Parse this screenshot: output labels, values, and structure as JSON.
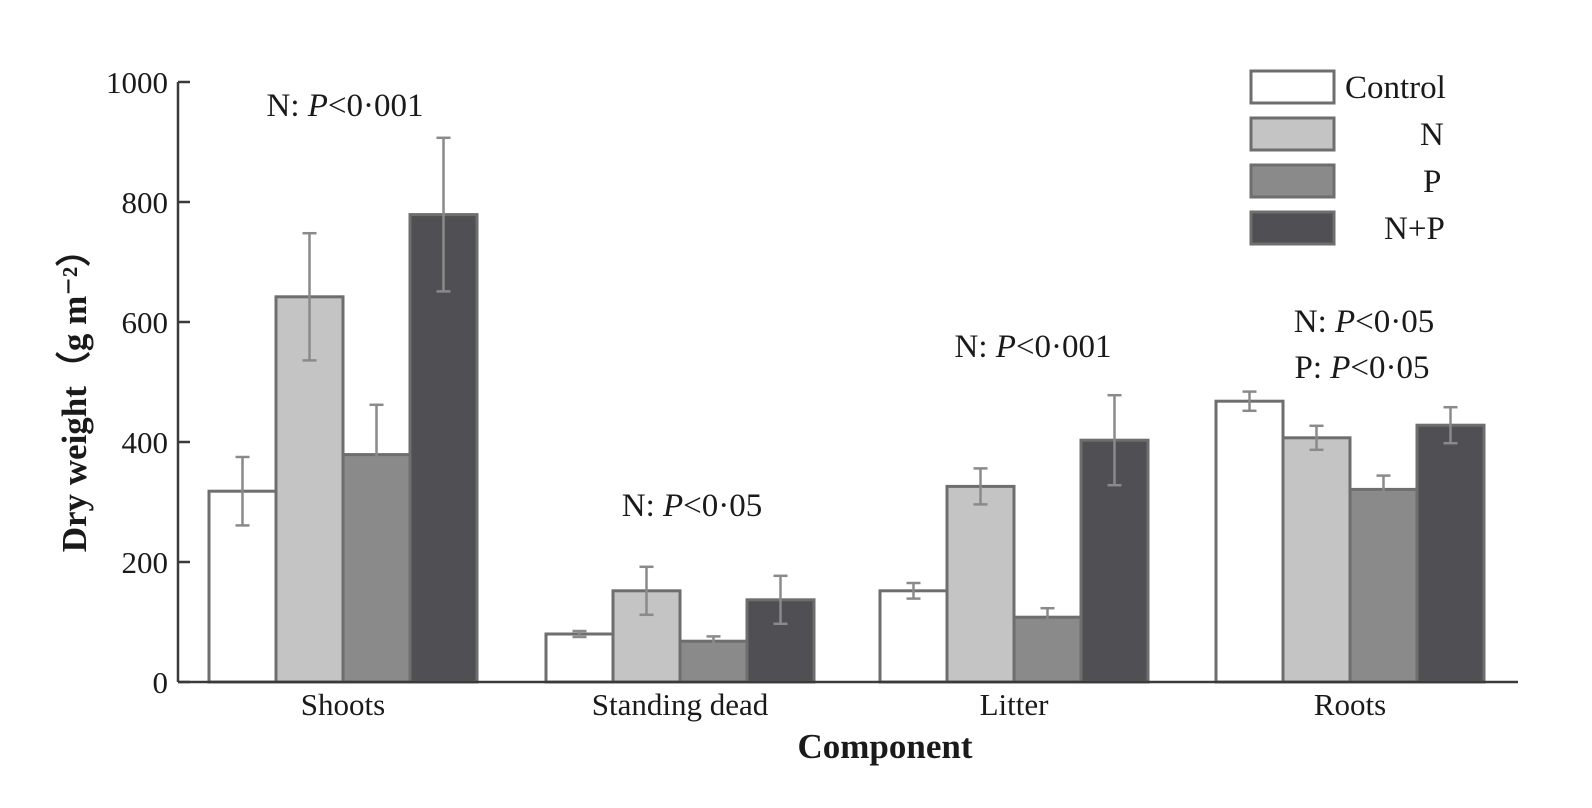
{
  "chart_data": {
    "type": "bar",
    "xlabel": "Component",
    "ylabel": "Dry weight（g m⁻²）",
    "ylim": [
      0,
      1000
    ],
    "yticks": [
      0,
      200,
      400,
      600,
      800,
      1000
    ],
    "categories": [
      "Shoots",
      "Standing dead",
      "Litter",
      "Roots"
    ],
    "series": [
      {
        "name": "Control",
        "color": "#ffffff",
        "values": [
          318,
          80,
          152,
          468
        ],
        "errors": [
          57,
          5,
          13,
          16
        ]
      },
      {
        "name": "N",
        "color": "#c4c4c4",
        "values": [
          642,
          152,
          326,
          407
        ],
        "errors": [
          106,
          40,
          30,
          20
        ]
      },
      {
        "name": "P",
        "color": "#8a8a8a",
        "values": [
          379,
          68,
          108,
          321
        ],
        "errors": [
          83,
          8,
          15,
          23
        ]
      },
      {
        "name": "N+P",
        "color": "#4f4f54",
        "values": [
          779,
          137,
          403,
          428
        ],
        "errors": [
          128,
          40,
          75,
          30
        ]
      }
    ],
    "annotations": [
      {
        "category": "Shoots",
        "lines": [
          {
            "prefix": "N: ",
            "p": "P",
            "rest": "<0·001"
          }
        ]
      },
      {
        "category": "Standing dead",
        "lines": [
          {
            "prefix": "N: ",
            "p": "P",
            "rest": "<0·05"
          }
        ]
      },
      {
        "category": "Litter",
        "lines": [
          {
            "prefix": "N: ",
            "p": "P",
            "rest": "<0·001"
          }
        ]
      },
      {
        "category": "Roots",
        "lines": [
          {
            "prefix": "N: ",
            "p": "P",
            "rest": "<0·05"
          },
          {
            "prefix": "P: ",
            "p": "P",
            "rest": "<0·05"
          }
        ]
      }
    ],
    "legend": {
      "placement": "top-right"
    },
    "grid": false
  }
}
